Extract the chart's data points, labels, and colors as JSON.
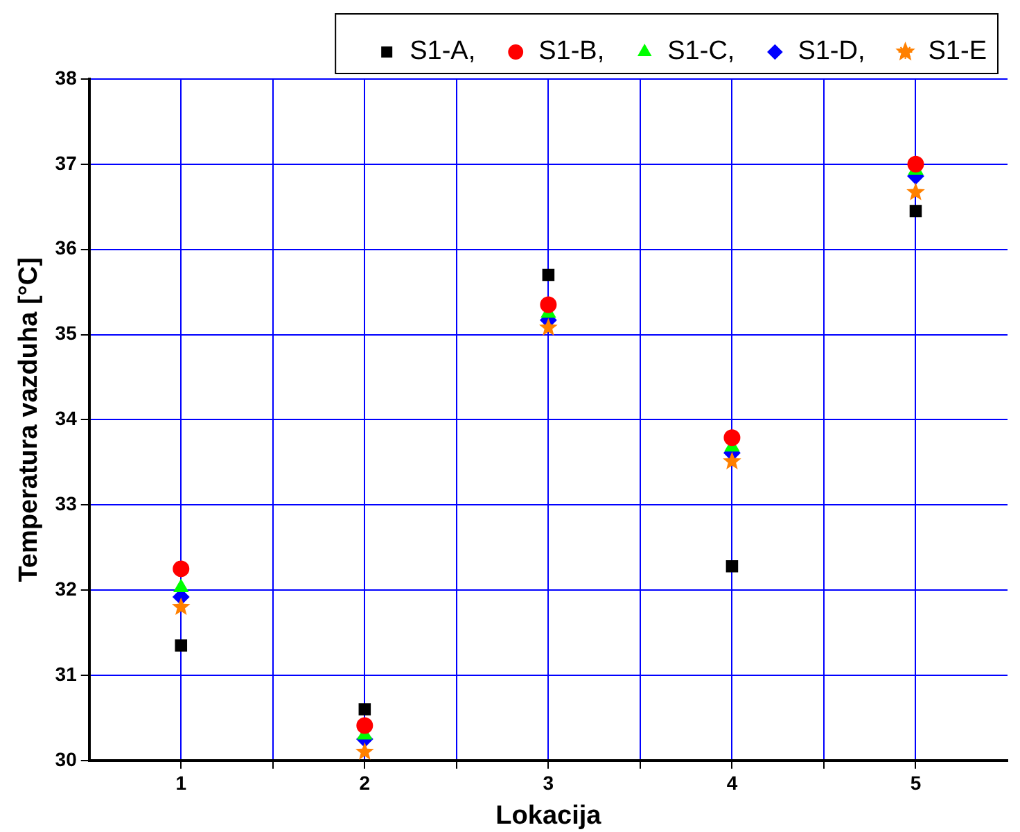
{
  "chart_data": {
    "type": "scatter",
    "xlabel": "Lokacija",
    "ylabel": "Temperatura vazduha [°C]",
    "x": [
      1,
      2,
      3,
      4,
      5
    ],
    "xlim": [
      0.5,
      5.5
    ],
    "xticks": [
      1,
      {
        "value": 1.5,
        "label": null
      },
      2,
      {
        "value": 2.5,
        "label": null
      },
      3,
      {
        "value": 3.5,
        "label": null
      },
      4,
      {
        "value": 4.5,
        "label": null
      },
      5
    ],
    "ylim": [
      30,
      38
    ],
    "yticks": [
      30,
      31,
      32,
      33,
      34,
      35,
      36,
      37,
      38
    ],
    "grid": true,
    "legend": "top",
    "series": [
      {
        "name": "S1-A,",
        "color": "#000000",
        "marker": "square",
        "values": [
          31.35,
          30.6,
          35.7,
          32.28,
          36.45
        ]
      },
      {
        "name": "S1-B,",
        "color": "#ff0000",
        "marker": "circle",
        "values": [
          32.25,
          30.41,
          35.35,
          33.79,
          37.0
        ]
      },
      {
        "name": "S1-C,",
        "color": "#00ff00",
        "marker": "triangle",
        "values": [
          32.03,
          30.3,
          35.25,
          33.68,
          36.93
        ]
      },
      {
        "name": "S1-D,",
        "color": "#0000ff",
        "marker": "diamond",
        "values": [
          31.92,
          30.25,
          35.17,
          33.61,
          36.86
        ]
      },
      {
        "name": "S1-E",
        "color": "#ff8000",
        "marker": "star",
        "values": [
          31.8,
          30.1,
          35.08,
          33.51,
          36.67
        ]
      }
    ]
  }
}
